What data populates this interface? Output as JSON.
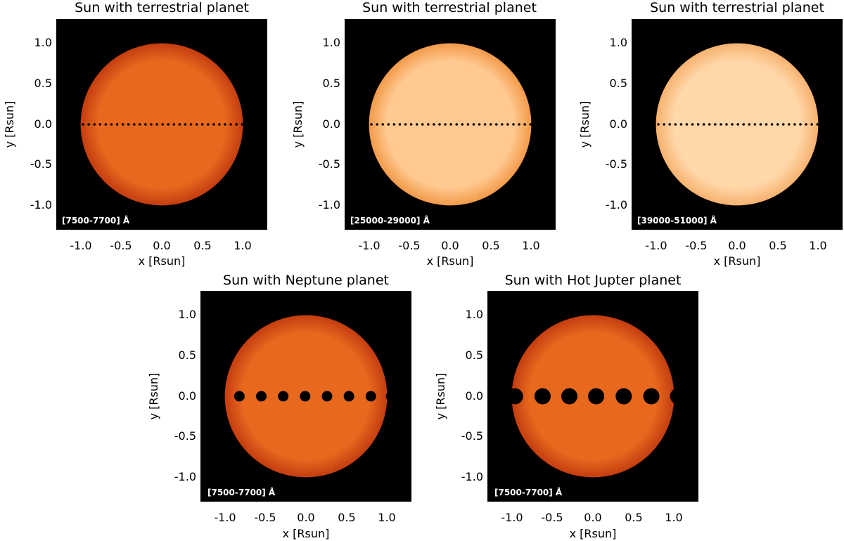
{
  "chart_data": [
    {
      "type": "image",
      "title": "Sun with terrestrial planet",
      "xlabel": "x [Rsun]",
      "ylabel": "y [Rsun]",
      "wavelength_label": "[7500-7700] Å",
      "xlim": [
        -1.3,
        1.3
      ],
      "ylim": [
        -1.3,
        1.3
      ],
      "x_ticks": [
        "-1.0",
        "-0.5",
        "0.0",
        "0.5",
        "1.0"
      ],
      "y_ticks": [
        "1.0",
        "0.5",
        "0.0",
        "-0.5",
        "-1.0"
      ],
      "disk_color": "#e8681e",
      "disk_edge_color": "#c43d10",
      "planet": {
        "radius": 0.015,
        "y": 0.0,
        "x_positions": [
          -0.97,
          -0.9,
          -0.83,
          -0.76,
          -0.69,
          -0.62,
          -0.55,
          -0.48,
          -0.41,
          -0.34,
          -0.27,
          -0.2,
          -0.13,
          -0.06,
          0.01,
          0.08,
          0.15,
          0.22,
          0.29,
          0.36,
          0.43,
          0.5,
          0.57,
          0.64,
          0.71,
          0.78,
          0.85,
          0.92,
          0.99
        ]
      }
    },
    {
      "type": "image",
      "title": "Sun with terrestrial planet",
      "xlabel": "x [Rsun]",
      "ylabel": "y [Rsun]",
      "wavelength_label": "[25000-29000] Å",
      "xlim": [
        -1.3,
        1.3
      ],
      "ylim": [
        -1.3,
        1.3
      ],
      "x_ticks": [
        "-1.0",
        "-0.5",
        "0.0",
        "0.5",
        "1.0"
      ],
      "y_ticks": [
        "1.0",
        "0.5",
        "0.0",
        "-0.5",
        "-1.0"
      ],
      "disk_color": "#ffc990",
      "disk_edge_color": "#f29a4a",
      "planet": {
        "radius": 0.015,
        "y": 0.0,
        "x_positions": [
          -0.97,
          -0.9,
          -0.83,
          -0.76,
          -0.69,
          -0.62,
          -0.55,
          -0.48,
          -0.41,
          -0.34,
          -0.27,
          -0.2,
          -0.13,
          -0.06,
          0.01,
          0.08,
          0.15,
          0.22,
          0.29,
          0.36,
          0.43,
          0.5,
          0.57,
          0.64,
          0.71,
          0.78,
          0.85,
          0.92,
          0.99
        ]
      }
    },
    {
      "type": "image",
      "title": "Sun with terrestrial planet",
      "xlabel": "x [Rsun]",
      "ylabel": "y [Rsun]",
      "wavelength_label": "[39000-51000] Å",
      "xlim": [
        -1.3,
        1.3
      ],
      "ylim": [
        -1.3,
        1.3
      ],
      "x_ticks": [
        "-1.0",
        "-0.5",
        "0.0",
        "0.5",
        "1.0"
      ],
      "y_ticks": [
        "1.0",
        "0.5",
        "0.0",
        "-0.5",
        "-1.0"
      ],
      "disk_color": "#ffd7a8",
      "disk_edge_color": "#f6b270",
      "planet": {
        "radius": 0.015,
        "y": 0.0,
        "x_positions": [
          -0.97,
          -0.9,
          -0.83,
          -0.76,
          -0.69,
          -0.62,
          -0.55,
          -0.48,
          -0.41,
          -0.34,
          -0.27,
          -0.2,
          -0.13,
          -0.06,
          0.01,
          0.08,
          0.15,
          0.22,
          0.29,
          0.36,
          0.43,
          0.5,
          0.57,
          0.64,
          0.71,
          0.78,
          0.85,
          0.92,
          0.99
        ]
      }
    },
    {
      "type": "image",
      "title": "Sun with Neptune planet",
      "xlabel": "x [Rsun]",
      "ylabel": "y [Rsun]",
      "wavelength_label": "[7500-7700] Å",
      "xlim": [
        -1.3,
        1.3
      ],
      "ylim": [
        -1.3,
        1.3
      ],
      "x_ticks": [
        "-1.0",
        "-0.5",
        "0.0",
        "0.5",
        "1.0"
      ],
      "y_ticks": [
        "1.0",
        "0.5",
        "0.0",
        "-0.5",
        "-1.0"
      ],
      "disk_color": "#e8681e",
      "disk_edge_color": "#c43d10",
      "planet": {
        "radius": 0.065,
        "y": 0.0,
        "x_positions": [
          -0.82,
          -0.55,
          -0.28,
          -0.01,
          0.26,
          0.53,
          0.8,
          1.05
        ]
      }
    },
    {
      "type": "image",
      "title": "Sun with Hot Jupter planet",
      "xlabel": "x [Rsun]",
      "ylabel": "y [Rsun]",
      "wavelength_label": "[7500-7700] Å",
      "xlim": [
        -1.3,
        1.3
      ],
      "ylim": [
        -1.3,
        1.3
      ],
      "x_ticks": [
        "-1.0",
        "-0.5",
        "0.0",
        "0.5",
        "1.0"
      ],
      "y_ticks": [
        "1.0",
        "0.5",
        "0.0",
        "-0.5",
        "-1.0"
      ],
      "disk_color": "#e8681e",
      "disk_edge_color": "#c43d10",
      "planet": {
        "radius": 0.1,
        "y": 0.0,
        "x_positions": [
          -0.96,
          -0.62,
          -0.29,
          0.04,
          0.38,
          0.72,
          1.05
        ]
      }
    }
  ]
}
